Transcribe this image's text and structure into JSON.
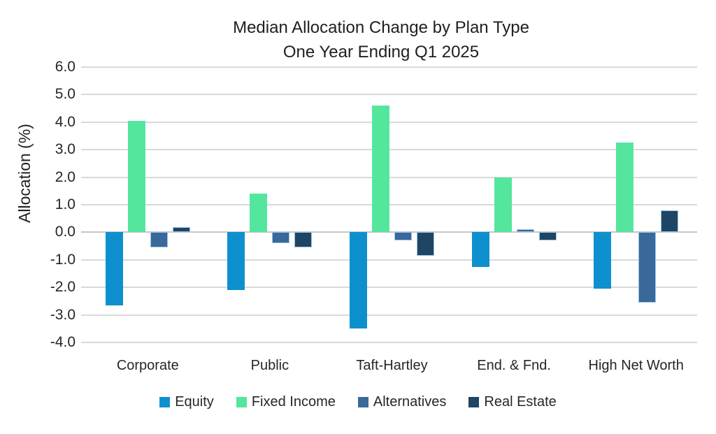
{
  "colors": {
    "gridline": "#D9D9D9",
    "zero_line": "#C6C6C6",
    "text": "#262626",
    "equity": "#0F90CE",
    "fixed_income": "#55E69E",
    "alternatives": "#39689B",
    "real_estate": "#1E4564",
    "bar_border_light": "#9DC3E6"
  },
  "chart_data": {
    "type": "bar",
    "title_lines": [
      "Median Allocation Change by Plan Type",
      "One Year Ending Q1 2025"
    ],
    "title": "Median Allocation Change by Plan Type — One Year Ending Q1 2025",
    "xlabel": "",
    "ylabel": "Allocation (%)",
    "ylim": [
      -4.0,
      6.0
    ],
    "ytick_step": 1.0,
    "ytick_decimals": 1,
    "grid": true,
    "legend_position": "bottom",
    "categories": [
      "Corporate",
      "Public",
      "Taft-Hartley",
      "End. & Fnd.",
      "High Net Worth"
    ],
    "series": [
      {
        "name": "Equity",
        "color": "#0F90CE",
        "border": "",
        "values": [
          -2.65,
          -2.1,
          -3.5,
          -1.25,
          -2.05
        ]
      },
      {
        "name": "Fixed Income",
        "color": "#55E69E",
        "border": "",
        "values": [
          4.05,
          1.4,
          4.6,
          2.0,
          3.25
        ]
      },
      {
        "name": "Alternatives",
        "color": "#39689B",
        "border": "#9DC3E6",
        "values": [
          -0.55,
          -0.4,
          -0.3,
          0.1,
          -2.55
        ]
      },
      {
        "name": "Real Estate",
        "color": "#1E4564",
        "border": "#9DC3E6",
        "values": [
          0.2,
          -0.55,
          -0.85,
          -0.3,
          0.8
        ]
      }
    ]
  }
}
